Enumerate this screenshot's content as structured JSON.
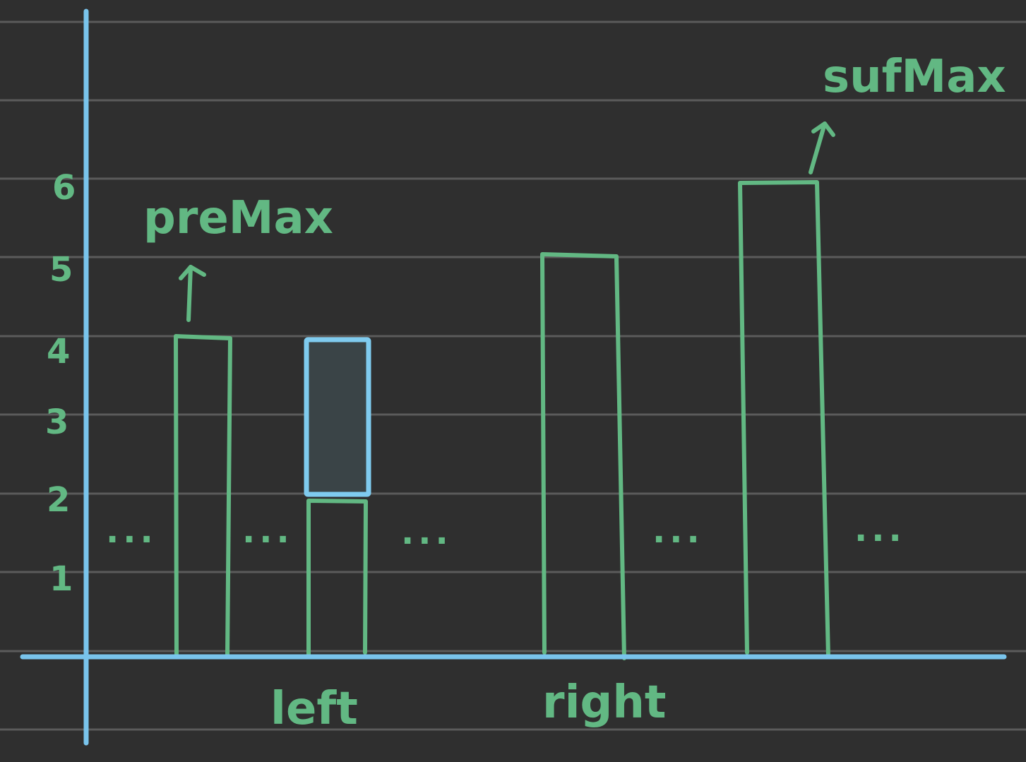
{
  "colors": {
    "background": "#2f2f2f",
    "rule_line": "#5b5b5b",
    "axis": "#79c4ec",
    "ink": "#62b883",
    "highlight_fill": "#3a4447",
    "highlight_stroke": "#7fcbef"
  },
  "y_ticks": [
    "1",
    "2",
    "3",
    "4",
    "5",
    "6"
  ],
  "labels": {
    "pre_max": "preMax",
    "suf_max": "sufMax",
    "left": "left",
    "right": "right"
  },
  "ellipsis": "...",
  "bars": [
    {
      "id": "premax-bar",
      "value": 4
    },
    {
      "id": "left-bar",
      "value": 2
    },
    {
      "id": "right-bar",
      "value": 5
    },
    {
      "id": "sufmax-bar",
      "value": 6
    }
  ],
  "water": {
    "from": 2,
    "to": 4
  }
}
